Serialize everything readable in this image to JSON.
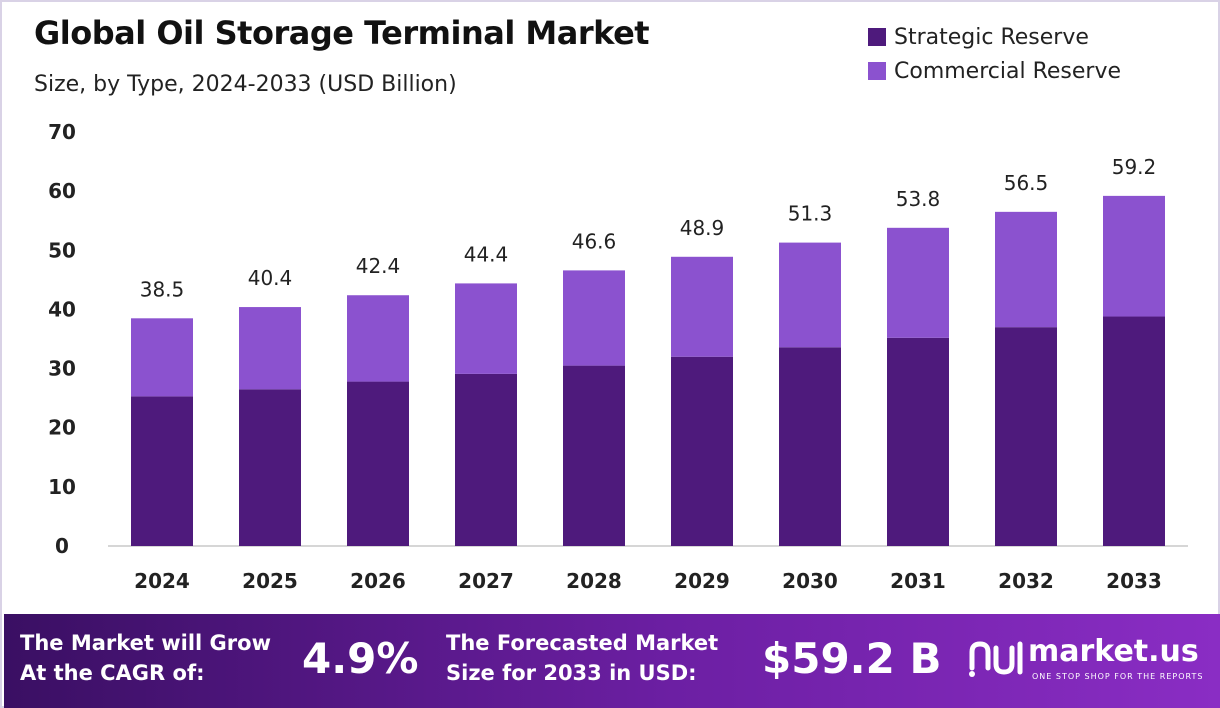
{
  "header": {
    "title": "Global Oil Storage Terminal Market",
    "subtitle": "Size, by Type, 2024-2033 (USD Billion)"
  },
  "colors": {
    "strategic": "#4e1a7c",
    "commercial": "#8b52cf",
    "footer_start": "#3a0f63",
    "footer_end": "#8a2dc4"
  },
  "legend": {
    "items": [
      {
        "label": "Strategic Reserve",
        "color": "#4e1a7c"
      },
      {
        "label": "Commercial Reserve",
        "color": "#8b52cf"
      }
    ]
  },
  "chart_data": {
    "type": "bar",
    "stacked": true,
    "categories": [
      "2024",
      "2025",
      "2026",
      "2027",
      "2028",
      "2029",
      "2030",
      "2031",
      "2032",
      "2033"
    ],
    "series": [
      {
        "name": "Strategic Reserve",
        "values": [
          25.3,
          26.5,
          27.8,
          29.1,
          30.5,
          32.0,
          33.6,
          35.2,
          37.0,
          38.8
        ]
      },
      {
        "name": "Commercial Reserve",
        "values": [
          13.2,
          13.9,
          14.6,
          15.3,
          16.1,
          16.9,
          17.7,
          18.6,
          19.5,
          20.4
        ]
      }
    ],
    "totals": [
      "38.5",
      "40.4",
      "42.4",
      "44.4",
      "46.6",
      "48.9",
      "51.3",
      "53.8",
      "56.5",
      "59.2"
    ],
    "y_ticks": [
      "0",
      "10",
      "20",
      "30",
      "40",
      "50",
      "60",
      "70"
    ],
    "ylim": [
      0,
      70
    ],
    "grid": false,
    "legend_position": "top-right"
  },
  "footer": {
    "cagr_label_line1": "The Market will Grow",
    "cagr_label_line2": "At the CAGR of:",
    "cagr_value": "4.9%",
    "forecast_label_line1": "The Forecasted Market",
    "forecast_label_line2": "Size for 2033 in USD:",
    "forecast_value": "$59.2 B",
    "logo_name": "market.us",
    "logo_tagline": "ONE STOP SHOP FOR THE REPORTS",
    "logo_icon": "market-us-logo-icon"
  }
}
